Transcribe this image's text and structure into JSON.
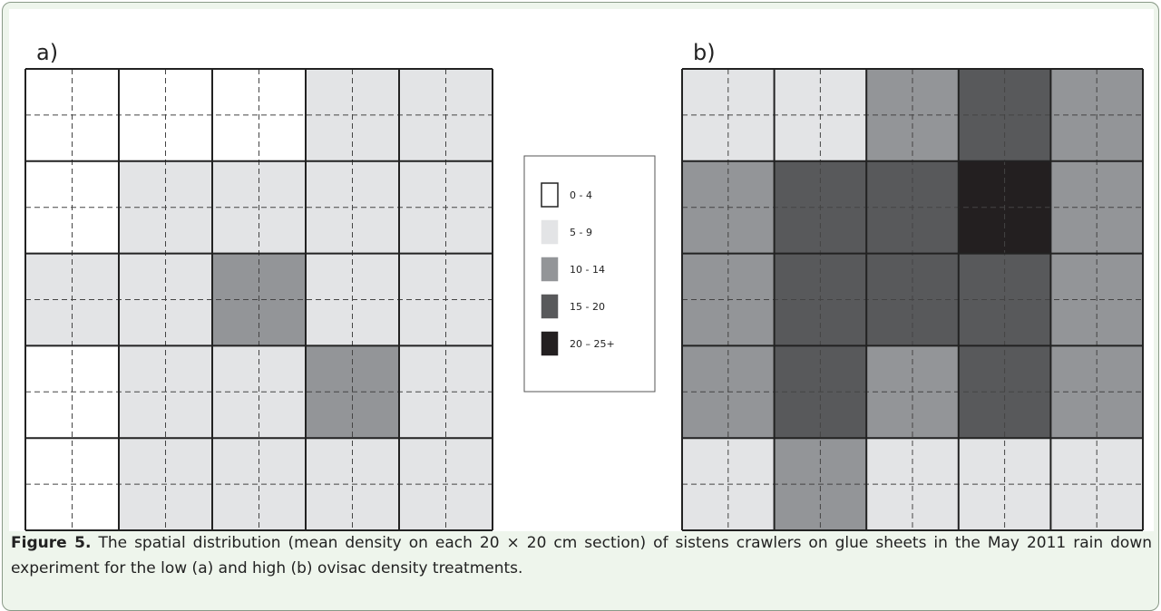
{
  "figure": {
    "legend": [
      {
        "label": "0 - 4",
        "color": "#ffffff"
      },
      {
        "label": "5 - 9",
        "color": "#e3e4e6"
      },
      {
        "label": "10 - 14",
        "color": "#939598"
      },
      {
        "label": "15 - 20",
        "color": "#58595b"
      },
      {
        "label": "20 – 25+",
        "color": "#231f20"
      }
    ],
    "panels": [
      {
        "label": "a)",
        "cells": [
          [
            0,
            0,
            0,
            1,
            1
          ],
          [
            0,
            1,
            1,
            1,
            1
          ],
          [
            1,
            1,
            2,
            1,
            1
          ],
          [
            0,
            1,
            1,
            2,
            1
          ],
          [
            0,
            1,
            1,
            1,
            1
          ]
        ]
      },
      {
        "label": "b)",
        "cells": [
          [
            1,
            1,
            2,
            3,
            2
          ],
          [
            2,
            3,
            3,
            4,
            2
          ],
          [
            2,
            3,
            3,
            3,
            2
          ],
          [
            2,
            3,
            2,
            3,
            2
          ],
          [
            1,
            2,
            1,
            1,
            1
          ]
        ]
      }
    ],
    "caption": {
      "label": "Figure 5.",
      "text": "The spatial distribution (mean density on each 20 × 20 cm section) of sistens crawlers on glue sheets in the May 2011 rain down experiment for the low (a) and high (b) ovisac density treatments."
    }
  }
}
